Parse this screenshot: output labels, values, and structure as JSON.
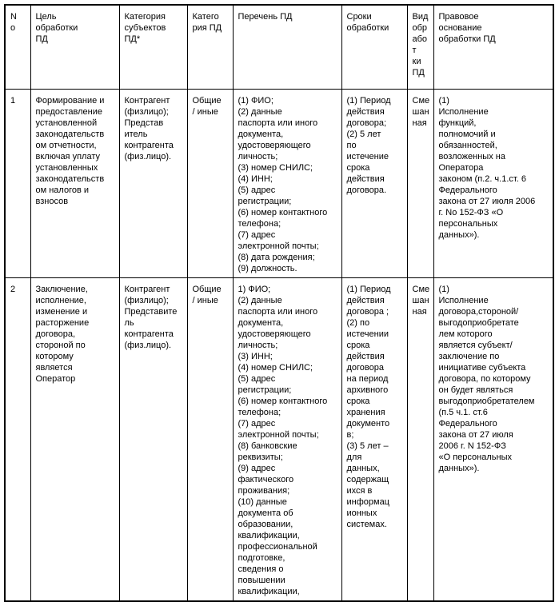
{
  "table": {
    "headers": {
      "no": "N\no",
      "purpose": "Цель\nобработки\nПД",
      "subjects": "Категория\nсубъектов\nПД*",
      "category": "Катего\nрия ПД",
      "list": "Перечень ПД",
      "terms": "Сроки\nобработки",
      "processing_type": "Вид\nобр\nабот\nки\nПД",
      "legal_basis": "Правовое\nоснование\nобработки ПД"
    },
    "rows": [
      {
        "no": "1",
        "purpose": "Формирование и\nпредоставление\nустановленной\nзаконодательств\nом отчетности,\nвключая уплату\nустановленных\nзаконодательств\nом налогов и\nвзносов",
        "subjects": "Контрагент\n(физлицо);\nПредстав\nитель\nконтрагента\n(физ.лицо).",
        "category": "Общие\n/ иные",
        "list": "(1) ФИО;\n(2) данные\nпаспорта или иного\nдокумента,\nудостоверяющего\nличность;\n(3) номер СНИЛС;\n(4) ИНН;\n(5) адрес\nрегистрации;\n(6) номер контактного\nтелефона;\n(7) адрес\nэлектронной почты;\n(8) дата рождения;\n(9) должность.",
        "terms": "(1) Период\nдействия\nдоговора;\n(2) 5 лет\nпо\nистечение\nсрока\nдействия\nдоговора.",
        "processing_type": "Сме\nшан\nная",
        "legal_basis": "(1)\nИсполнение\nфункций,\nполномочий и\nобязанностей,\nвозложенных на\nОператора\nзаконом (п.2. ч.1.ст. 6\nФедерального\nзакона от 27 июля 2006\nг. No 152-ФЗ «О\nперсональных\nданных»)."
      },
      {
        "no": "2",
        "purpose": "Заключение,\nисполнение,\nизменение и\nрасторжение\nдоговора,\nстороной по\nкоторому\nявляется\nОператор",
        "subjects": "Контрагент\n(физлицо);\nПредставите\nль\nконтрагента\n(физ.лицо).",
        "category": "Общие\n/ иные",
        "list": "1) ФИО;\n(2) данные\nпаспорта или иного\nдокумента,\nудостоверяющего\nличность;\n(3) ИНН;\n(4) номер СНИЛС;\n(5) адрес\nрегистрации;\n(6) номер контактного\nтелефона;\n(7) адрес\nэлектронной почты;\n(8) банковские\nреквизиты;\n(9) адрес\nфактического\nпроживания;\n(10) данные\nдокумента об\nобразовании,\nквалификации,\nпрофессиональной\nподготовке,\nсведения о\nповышении\nквалификации,",
        "terms": "(1) Период\nдействия\nдоговора ;\n(2) по\nистечении\nсрока\nдействия\nдоговора\nна период\nархивного\nсрока\nхранения\nдокументо\nв;\n(3) 5 лет –\nдля\nданных,\nсодержащ\nихся в\nинформац\nионных\nсистемах.",
        "processing_type": "Сме\nшан\nная",
        "legal_basis": "(1)\nИсполнение\nдоговора,стороной/\nвыгодоприобретате\nлем которого\nявляется субъект/\nзаключение по\nинициативе субъекта\nдоговора, по которому\nон будет являться\nвыгодоприобретателем\n(п.5 ч.1. ст.6\nФедерального\nзакона от 27 июля\n2006 г. N 152-ФЗ\n«О персональных\nданных»)."
      }
    ]
  }
}
